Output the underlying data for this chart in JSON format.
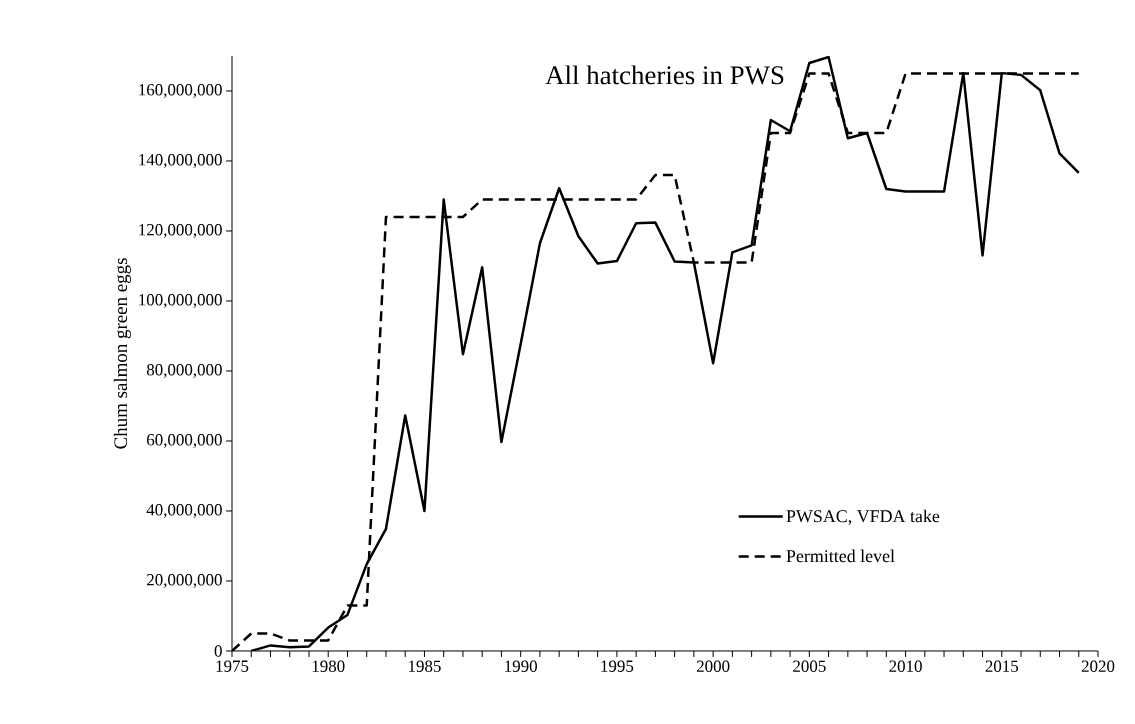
{
  "chart_data": {
    "type": "line",
    "title": "All hatcheries in PWS",
    "ylabel": "Chum salmon green eggs",
    "x": [
      1975,
      1976,
      1977,
      1978,
      1979,
      1980,
      1981,
      1982,
      1983,
      1984,
      1985,
      1986,
      1987,
      1988,
      1989,
      1990,
      1991,
      1992,
      1993,
      1994,
      1995,
      1996,
      1997,
      1998,
      1999,
      2000,
      2001,
      2002,
      2003,
      2004,
      2005,
      2006,
      2007,
      2008,
      2009,
      2010,
      2011,
      2012,
      2013,
      2014,
      2015,
      2016,
      2017,
      2018,
      2019
    ],
    "series": [
      {
        "name": "PWSAC, VFDA take",
        "color": "#000000",
        "line_style": "solid",
        "values": [
          null,
          0,
          1600000,
          1100000,
          1300000,
          6700000,
          10300000,
          24800000,
          34900000,
          67300000,
          40000000,
          129000000,
          84800000,
          109600000,
          59700000,
          87700000,
          116500000,
          132200000,
          118500000,
          110700000,
          111400000,
          122200000,
          122400000,
          111300000,
          111000000,
          82200000,
          113900000,
          115900000,
          151700000,
          148500000,
          168000000,
          169700000,
          146500000,
          148000000,
          132000000,
          131300000,
          131300000,
          131300000,
          165100000,
          113000000,
          165100000,
          164600000,
          160200000,
          142200000,
          136600000
        ]
      },
      {
        "name": "Permitted level",
        "color": "#000000",
        "line_style": "dashed",
        "values": [
          0,
          5000000,
          5000000,
          3000000,
          3000000,
          3000000,
          13000000,
          13000000,
          124000000,
          124000000,
          124000000,
          124000000,
          124000000,
          129000000,
          129000000,
          129000000,
          129000000,
          129000000,
          129000000,
          129000000,
          129000000,
          129000000,
          136000000,
          136000000,
          111000000,
          111000000,
          111000000,
          111000000,
          148000000,
          148000000,
          165000000,
          165000000,
          148000000,
          148000000,
          148000000,
          165000000,
          165000000,
          165000000,
          165000000,
          165000000,
          165000000,
          165000000,
          165000000,
          165000000,
          165000000
        ]
      }
    ],
    "xlim": [
      1975,
      2020
    ],
    "ylim": [
      0,
      170000000
    ],
    "xticks": [
      1975,
      {
        "value": 1976,
        "label": null
      },
      {
        "value": 1977,
        "label": null
      },
      {
        "value": 1978,
        "label": null
      },
      {
        "value": 1979,
        "label": null
      },
      1980,
      {
        "value": 1981,
        "label": null
      },
      {
        "value": 1982,
        "label": null
      },
      {
        "value": 1983,
        "label": null
      },
      {
        "value": 1984,
        "label": null
      },
      1985,
      {
        "value": 1986,
        "label": null
      },
      {
        "value": 1987,
        "label": null
      },
      {
        "value": 1988,
        "label": null
      },
      {
        "value": 1989,
        "label": null
      },
      1990,
      {
        "value": 1991,
        "label": null
      },
      {
        "value": 1992,
        "label": null
      },
      {
        "value": 1993,
        "label": null
      },
      {
        "value": 1994,
        "label": null
      },
      1995,
      {
        "value": 1996,
        "label": null
      },
      {
        "value": 1997,
        "label": null
      },
      {
        "value": 1998,
        "label": null
      },
      {
        "value": 1999,
        "label": null
      },
      2000,
      {
        "value": 2001,
        "label": null
      },
      {
        "value": 2002,
        "label": null
      },
      {
        "value": 2003,
        "label": null
      },
      {
        "value": 2004,
        "label": null
      },
      2005,
      {
        "value": 2006,
        "label": null
      },
      {
        "value": 2007,
        "label": null
      },
      {
        "value": 2008,
        "label": null
      },
      {
        "value": 2009,
        "label": null
      },
      2010,
      {
        "value": 2011,
        "label": null
      },
      {
        "value": 2012,
        "label": null
      },
      {
        "value": 2013,
        "label": null
      },
      {
        "value": 2014,
        "label": null
      },
      2015,
      {
        "value": 2016,
        "label": null
      },
      {
        "value": 2017,
        "label": null
      },
      {
        "value": 2018,
        "label": null
      },
      {
        "value": 2019,
        "label": null
      },
      2020
    ],
    "yticks": [
      0,
      {
        "value": 20000000,
        "label": "20,000,000"
      },
      {
        "value": 40000000,
        "label": "40,000,000"
      },
      {
        "value": 60000000,
        "label": "60,000,000"
      },
      {
        "value": 80000000,
        "label": "80,000,000"
      },
      {
        "value": 100000000,
        "label": "100,000,000"
      },
      {
        "value": 120000000,
        "label": "120,000,000"
      },
      {
        "value": 140000000,
        "label": "140,000,000"
      },
      {
        "value": 160000000,
        "label": "160,000,000"
      }
    ],
    "grid": false,
    "legend": "bottom right",
    "marker": "none"
  }
}
